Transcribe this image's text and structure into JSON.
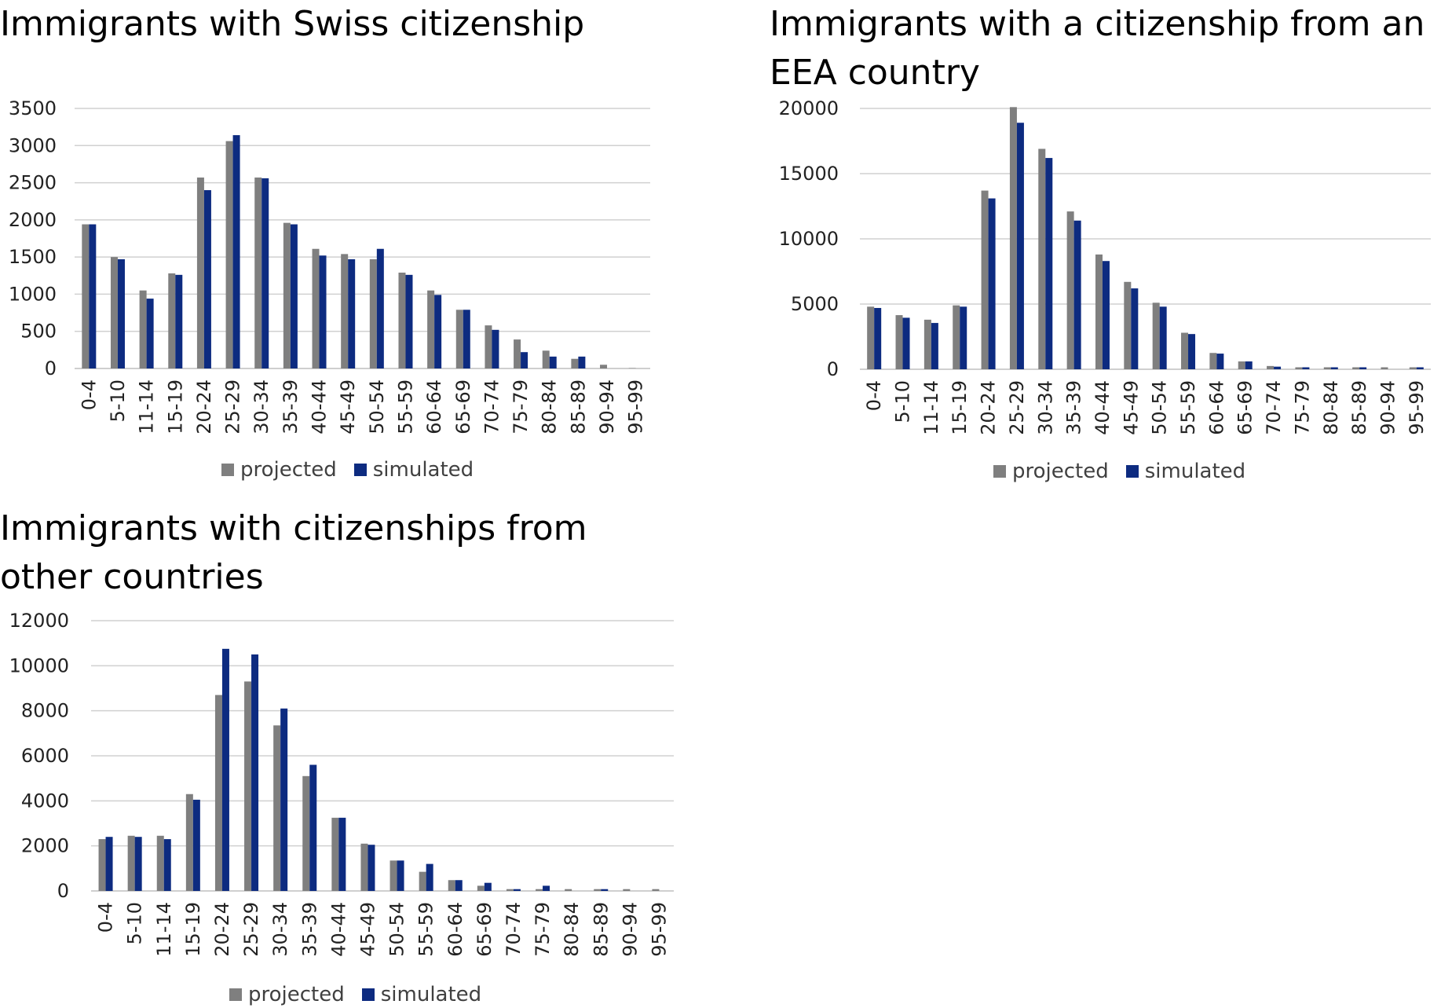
{
  "colors": {
    "projected": "#7f7f7f",
    "simulated": "#0d2b80",
    "grid": "#d0d0d0",
    "axis": "#bfbfbf"
  },
  "legend": {
    "projected": "projected",
    "simulated": "simulated"
  },
  "chart_data": [
    {
      "type": "bar",
      "title": "Immigrants with Swiss citizenship",
      "xlabel": "",
      "ylabel": "",
      "categories": [
        "0-4",
        "5-10",
        "11-14",
        "15-19",
        "20-24",
        "25-29",
        "30-34",
        "35-39",
        "40-44",
        "45-49",
        "50-54",
        "55-59",
        "60-64",
        "65-69",
        "70-74",
        "75-79",
        "80-84",
        "85-89",
        "90-94",
        "95-99"
      ],
      "series": [
        {
          "name": "projected",
          "values": [
            1940,
            1500,
            1050,
            1280,
            2570,
            3060,
            2570,
            1960,
            1610,
            1540,
            1470,
            1290,
            1050,
            790,
            580,
            390,
            240,
            130,
            50,
            5
          ]
        },
        {
          "name": "simulated",
          "values": [
            1940,
            1470,
            940,
            1260,
            2400,
            3140,
            2560,
            1940,
            1520,
            1470,
            1610,
            1260,
            990,
            790,
            520,
            220,
            160,
            160,
            0,
            0
          ]
        }
      ],
      "ylim": [
        0,
        3500
      ],
      "yticks": [
        0,
        500,
        1000,
        1500,
        2000,
        2500,
        3000,
        3500
      ],
      "grid": true,
      "legend_position": "bottom"
    },
    {
      "type": "bar",
      "title": "Immigrants with a citizenship from an EEA country",
      "xlabel": "",
      "ylabel": "",
      "categories": [
        "0-4",
        "5-10",
        "11-14",
        "15-19",
        "20-24",
        "25-29",
        "30-34",
        "35-39",
        "40-44",
        "45-49",
        "50-54",
        "55-59",
        "60-64",
        "65-69",
        "70-74",
        "75-79",
        "80-84",
        "85-89",
        "90-94",
        "95-99"
      ],
      "series": [
        {
          "name": "projected",
          "values": [
            4800,
            4150,
            3800,
            4900,
            13700,
            20100,
            16900,
            12100,
            8800,
            6700,
            5100,
            2800,
            1250,
            600,
            250,
            150,
            150,
            150,
            150,
            150
          ]
        },
        {
          "name": "simulated",
          "values": [
            4700,
            3950,
            3550,
            4800,
            13100,
            18900,
            16200,
            11400,
            8300,
            6200,
            4800,
            2700,
            1200,
            600,
            200,
            150,
            150,
            150,
            0,
            150
          ]
        }
      ],
      "ylim": [
        0,
        20000
      ],
      "yticks": [
        0,
        5000,
        10000,
        15000,
        20000
      ],
      "grid": true,
      "legend_position": "bottom"
    },
    {
      "type": "bar",
      "title": "Immigrants with citizenships from other countries",
      "xlabel": "",
      "ylabel": "",
      "categories": [
        "0-4",
        "5-10",
        "11-14",
        "15-19",
        "20-24",
        "25-29",
        "30-34",
        "35-39",
        "40-44",
        "45-49",
        "50-54",
        "55-59",
        "60-64",
        "65-69",
        "70-74",
        "75-79",
        "80-84",
        "85-89",
        "90-94",
        "95-99"
      ],
      "series": [
        {
          "name": "projected",
          "values": [
            2300,
            2450,
            2450,
            4300,
            8700,
            9300,
            7350,
            5100,
            3250,
            2100,
            1350,
            850,
            480,
            230,
            80,
            80,
            80,
            80,
            80,
            80
          ]
        },
        {
          "name": "simulated",
          "values": [
            2400,
            2400,
            2300,
            4050,
            10750,
            10500,
            8100,
            5600,
            3250,
            2050,
            1350,
            1200,
            480,
            360,
            80,
            230,
            0,
            80,
            0,
            0
          ]
        }
      ],
      "ylim": [
        0,
        12000
      ],
      "yticks": [
        0,
        2000,
        4000,
        6000,
        8000,
        10000,
        12000
      ],
      "grid": true,
      "legend_position": "bottom"
    }
  ]
}
